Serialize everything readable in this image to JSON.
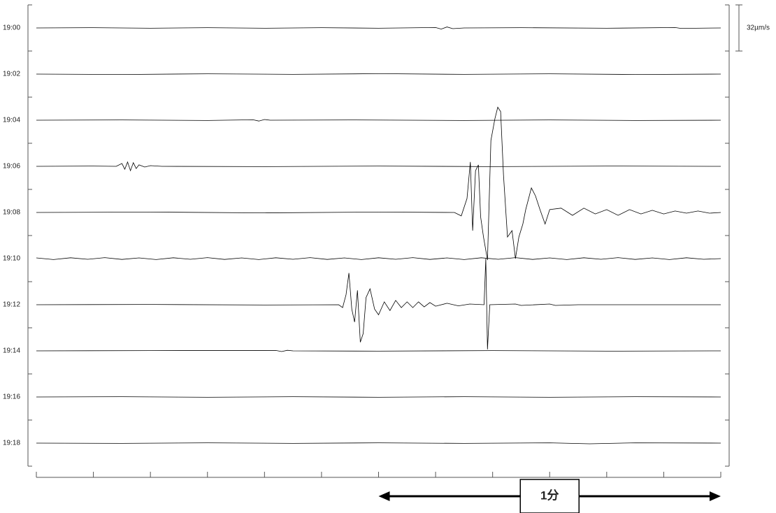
{
  "chart_data": {
    "type": "helicorder",
    "xlim": [
      0,
      120
    ],
    "xticks": [
      0,
      10,
      20,
      30,
      40,
      50,
      60,
      70,
      80,
      90,
      100,
      110,
      120
    ],
    "scale": {
      "value": 32,
      "label": "32µm/s"
    },
    "span": {
      "value": 60,
      "label": "1分"
    },
    "color": "#000000",
    "series": [
      {
        "name": "19:00",
        "x": [
          0,
          10,
          20,
          30,
          40,
          50,
          60,
          70,
          71,
          72,
          73,
          75,
          85,
          100,
          112,
          113,
          120
        ],
        "values": [
          0,
          0.2,
          -0.2,
          0.2,
          -0.2,
          0.2,
          -0.2,
          0.3,
          -0.8,
          0.7,
          -0.5,
          0,
          0.2,
          -0.2,
          0.3,
          -0.3,
          0
        ]
      },
      {
        "name": "19:02",
        "x": [
          0,
          15,
          30,
          45,
          60,
          75,
          90,
          105,
          120
        ],
        "values": [
          0,
          -0.3,
          0.2,
          -0.2,
          0.3,
          -0.2,
          0.2,
          -0.3,
          0
        ]
      },
      {
        "name": "19:04",
        "x": [
          0,
          15,
          30,
          38,
          39,
          40,
          41,
          55,
          75,
          90,
          105,
          120
        ],
        "values": [
          0,
          0.2,
          -0.2,
          0.3,
          -0.6,
          0.5,
          0,
          0.2,
          -0.2,
          0.2,
          -0.2,
          0
        ]
      },
      {
        "name": "19:06",
        "x": [
          0,
          10,
          14,
          15,
          15.5,
          16,
          16.5,
          17,
          17.5,
          18,
          19,
          20,
          22,
          40,
          60,
          80,
          100,
          120
        ],
        "values": [
          0,
          0.2,
          0,
          2,
          -2,
          3,
          -3,
          2.5,
          -1.5,
          1,
          -0.5,
          0.5,
          0,
          -0.2,
          0.2,
          -0.2,
          0.2,
          0
        ]
      },
      {
        "name": "19:08",
        "x": [
          0,
          20,
          40,
          60,
          73.3,
          74.5,
          75.5,
          76.1,
          76.5,
          77.0,
          77.5,
          77.9,
          78.4,
          79.1,
          79.7,
          80.4,
          80.9,
          81.4,
          81.9,
          82.6,
          83.4,
          84.0,
          84.6,
          85.3,
          85.8,
          86.8,
          87.5,
          88.3,
          89.2,
          90.0,
          92,
          94,
          96,
          98,
          100,
          102,
          104,
          106,
          108,
          110,
          112,
          114,
          116,
          118,
          120
        ],
        "values": [
          0,
          0.3,
          -0.3,
          0.3,
          0,
          -2.4,
          9.7,
          35,
          -12.6,
          29,
          33,
          -3,
          -17,
          -33,
          50,
          65,
          73,
          70,
          26,
          -17,
          -12.6,
          -32,
          -17,
          -8,
          2,
          17,
          11.6,
          2,
          -8,
          2,
          3,
          -2,
          3,
          -1,
          2,
          -2,
          2,
          -1,
          1.5,
          -1,
          1,
          -0.5,
          1,
          -0.5,
          0
        ]
      },
      {
        "name": "19:10",
        "x": [
          0,
          3,
          6,
          9,
          12,
          15,
          18,
          21,
          24,
          27,
          30,
          33,
          36,
          39,
          42,
          45,
          48,
          51,
          54,
          57,
          60,
          63,
          66,
          69,
          72,
          75,
          78,
          81,
          84,
          87,
          90,
          93,
          96,
          99,
          102,
          105,
          108,
          111,
          114,
          117,
          120
        ],
        "values": [
          0.5,
          -0.7,
          0.6,
          -0.5,
          0.7,
          -0.6,
          0.5,
          -0.7,
          0.6,
          -0.5,
          0.7,
          -0.6,
          0.5,
          -0.7,
          0.6,
          -0.5,
          0.7,
          -0.6,
          0.5,
          -0.7,
          0.6,
          -0.5,
          0.7,
          -0.6,
          0.5,
          -0.7,
          0.6,
          -0.5,
          0.7,
          -0.6,
          0.5,
          -0.7,
          0.6,
          -0.5,
          0.7,
          -0.6,
          0.5,
          -0.7,
          0.6,
          -0.5,
          0
        ]
      },
      {
        "name": "19:12",
        "x": [
          0,
          20,
          40,
          53,
          53.7,
          54.3,
          54.8,
          55.3,
          55.8,
          56.3,
          56.8,
          57.3,
          57.8,
          58.5,
          59.3,
          60,
          61,
          62,
          63,
          64,
          65,
          66,
          67,
          68,
          69,
          70,
          72,
          74,
          76,
          78.5,
          78.8,
          79.1,
          79.5,
          84,
          85,
          90,
          91,
          95,
          120
        ],
        "values": [
          0,
          0.2,
          -0.2,
          0,
          -2,
          7,
          22,
          -3,
          -12,
          10,
          -26,
          -20,
          5,
          11,
          -3,
          -7,
          2,
          -4,
          3,
          -2,
          2,
          -2,
          2,
          -1.5,
          1.5,
          -1,
          1,
          -0.8,
          0.5,
          0,
          32,
          -31,
          0,
          0.5,
          -0.5,
          0.5,
          -0.5,
          0,
          0
        ]
      },
      {
        "name": "19:14",
        "x": [
          0,
          20,
          42,
          43,
          44,
          45,
          60,
          80,
          100,
          120
        ],
        "values": [
          0,
          0.2,
          0.3,
          -0.5,
          0.4,
          0,
          -0.2,
          0.2,
          -0.2,
          0
        ]
      },
      {
        "name": "19:16",
        "x": [
          0,
          15,
          30,
          45,
          60,
          75,
          90,
          105,
          120
        ],
        "values": [
          0,
          0.2,
          -0.2,
          0.2,
          -0.2,
          0.2,
          -0.2,
          0.2,
          0
        ]
      },
      {
        "name": "19:18",
        "x": [
          0,
          15,
          30,
          45,
          60,
          75,
          90,
          97,
          105,
          120
        ],
        "values": [
          0,
          -0.2,
          0.2,
          -0.2,
          0.2,
          -0.2,
          0.2,
          -0.5,
          0.2,
          0
        ]
      }
    ]
  }
}
